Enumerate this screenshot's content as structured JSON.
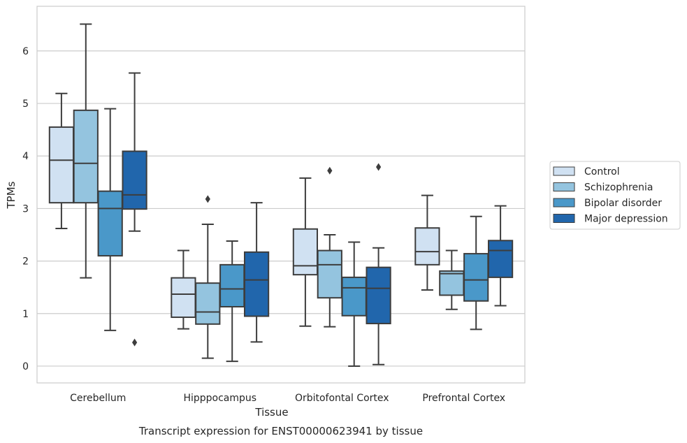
{
  "chart_data": {
    "type": "box",
    "xlabel": "Tissue",
    "ylabel": "TPMs",
    "caption": "Transcript expression for ENST00000623941 by tissue",
    "ylim": [
      -0.32,
      6.85
    ],
    "yticks": [
      0,
      1,
      2,
      3,
      4,
      5,
      6
    ],
    "grid": "horizontal",
    "legend_position": "right",
    "categories": [
      "Cerebellum",
      "Hipppocampus",
      "Orbitofontal Cortex",
      "Prefrontal Cortex"
    ],
    "series": [
      {
        "name": "Control",
        "color": "#d0e1f2",
        "boxes": [
          {
            "whisker_low": 2.62,
            "q1": 3.11,
            "median": 3.92,
            "q3": 4.55,
            "whisker_high": 5.19,
            "outliers": []
          },
          {
            "whisker_low": 0.71,
            "q1": 0.93,
            "median": 1.37,
            "q3": 1.68,
            "whisker_high": 2.2,
            "outliers": []
          },
          {
            "whisker_low": 0.76,
            "q1": 1.74,
            "median": 1.91,
            "q3": 2.61,
            "whisker_high": 3.58,
            "outliers": []
          },
          {
            "whisker_low": 1.45,
            "q1": 1.93,
            "median": 2.18,
            "q3": 2.63,
            "whisker_high": 3.25,
            "outliers": []
          }
        ]
      },
      {
        "name": "Schizophrenia",
        "color": "#94c4df",
        "boxes": [
          {
            "whisker_low": 1.68,
            "q1": 3.11,
            "median": 3.86,
            "q3": 4.87,
            "whisker_high": 6.51,
            "outliers": []
          },
          {
            "whisker_low": 0.15,
            "q1": 0.8,
            "median": 1.03,
            "q3": 1.58,
            "whisker_high": 2.7,
            "outliers": [
              3.18
            ]
          },
          {
            "whisker_low": 0.75,
            "q1": 1.3,
            "median": 1.93,
            "q3": 2.2,
            "whisker_high": 2.5,
            "outliers": [
              3.72
            ]
          },
          {
            "whisker_low": 1.08,
            "q1": 1.35,
            "median": 1.76,
            "q3": 1.81,
            "whisker_high": 2.2,
            "outliers": []
          }
        ]
      },
      {
        "name": "Bipolar disorder",
        "color": "#4a98c9",
        "boxes": [
          {
            "whisker_low": 0.68,
            "q1": 2.1,
            "median": 3.0,
            "q3": 3.33,
            "whisker_high": 4.9,
            "outliers": []
          },
          {
            "whisker_low": 0.09,
            "q1": 1.13,
            "median": 1.47,
            "q3": 1.93,
            "whisker_high": 2.38,
            "outliers": []
          },
          {
            "whisker_low": 0.0,
            "q1": 0.96,
            "median": 1.49,
            "q3": 1.69,
            "whisker_high": 2.36,
            "outliers": []
          },
          {
            "whisker_low": 0.7,
            "q1": 1.24,
            "median": 1.64,
            "q3": 2.14,
            "whisker_high": 2.85,
            "outliers": []
          }
        ]
      },
      {
        "name": "Major depression",
        "color": "#2166ac",
        "boxes": [
          {
            "whisker_low": 2.57,
            "q1": 2.99,
            "median": 3.26,
            "q3": 4.09,
            "whisker_high": 5.58,
            "outliers": [
              0.45
            ]
          },
          {
            "whisker_low": 0.46,
            "q1": 0.95,
            "median": 1.64,
            "q3": 2.17,
            "whisker_high": 3.11,
            "outliers": []
          },
          {
            "whisker_low": 0.03,
            "q1": 0.81,
            "median": 1.48,
            "q3": 1.88,
            "whisker_high": 2.25,
            "outliers": [
              3.79
            ]
          },
          {
            "whisker_low": 1.15,
            "q1": 1.69,
            "median": 2.2,
            "q3": 2.39,
            "whisker_high": 3.05,
            "outliers": []
          }
        ]
      }
    ]
  }
}
